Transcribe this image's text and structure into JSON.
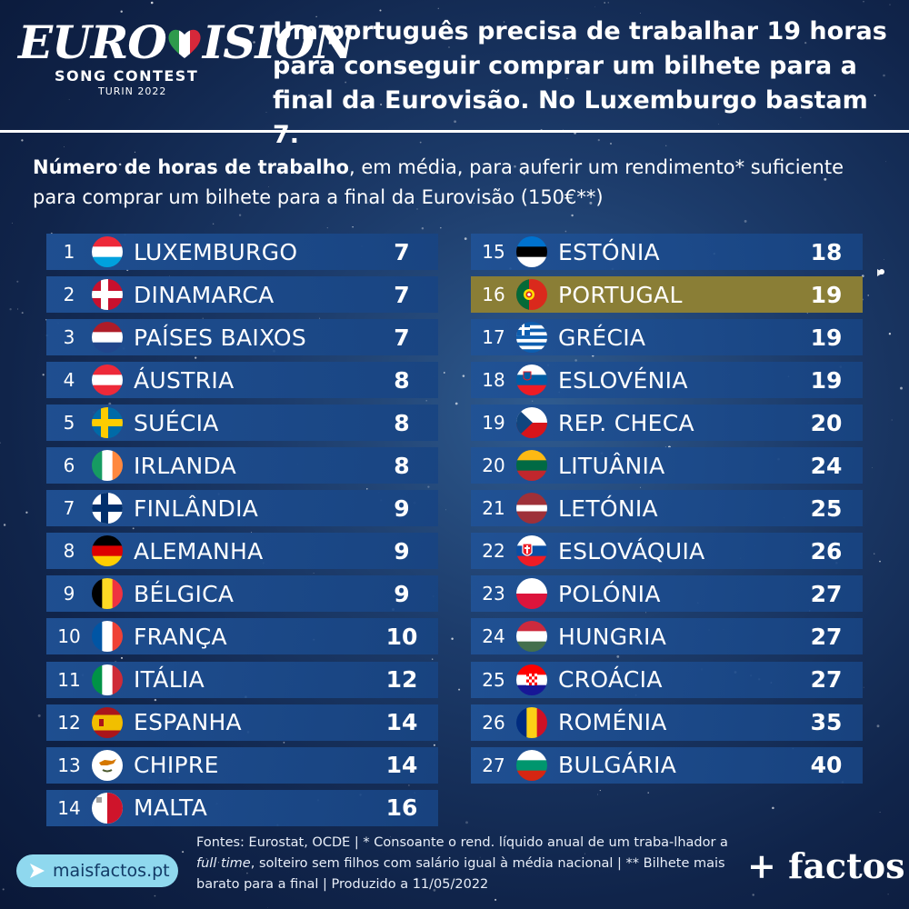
{
  "logo": {
    "word_left": "EURO",
    "word_right": "ISION",
    "line1": "SONG CONTEST",
    "line2": "TURIN 2022"
  },
  "headline": "Um português precisa de trabalhar 19 horas para conseguir comprar um bilhete para a final da Eurovisão. No Luxemburgo bastam 7.",
  "subtitle": {
    "bold": "Número de horas de trabalho",
    "rest": ", em média, para auferir um rendimento* suficiente para comprar um bilhete para a final da Eurovisão (150€**)"
  },
  "chart_data": {
    "type": "table",
    "highlight_rank": 16,
    "rows": [
      {
        "rank": 1,
        "country": "LUXEMBURGO",
        "hours": 7,
        "flag": "luxembourg-flag"
      },
      {
        "rank": 2,
        "country": "DINAMARCA",
        "hours": 7,
        "flag": "denmark-flag"
      },
      {
        "rank": 3,
        "country": "PAÍSES BAIXOS",
        "hours": 7,
        "flag": "netherlands-flag"
      },
      {
        "rank": 4,
        "country": "ÁUSTRIA",
        "hours": 8,
        "flag": "austria-flag"
      },
      {
        "rank": 5,
        "country": "SUÉCIA",
        "hours": 8,
        "flag": "sweden-flag"
      },
      {
        "rank": 6,
        "country": "IRLANDA",
        "hours": 8,
        "flag": "ireland-flag"
      },
      {
        "rank": 7,
        "country": "FINLÂNDIA",
        "hours": 9,
        "flag": "finland-flag"
      },
      {
        "rank": 8,
        "country": "ALEMANHA",
        "hours": 9,
        "flag": "germany-flag"
      },
      {
        "rank": 9,
        "country": "BÉLGICA",
        "hours": 9,
        "flag": "belgium-flag"
      },
      {
        "rank": 10,
        "country": "FRANÇA",
        "hours": 10,
        "flag": "france-flag"
      },
      {
        "rank": 11,
        "country": "ITÁLIA",
        "hours": 12,
        "flag": "italy-flag"
      },
      {
        "rank": 12,
        "country": "ESPANHA",
        "hours": 14,
        "flag": "spain-flag"
      },
      {
        "rank": 13,
        "country": "CHIPRE",
        "hours": 14,
        "flag": "cyprus-flag"
      },
      {
        "rank": 14,
        "country": "MALTA",
        "hours": 16,
        "flag": "malta-flag"
      },
      {
        "rank": 15,
        "country": "ESTÓNIA",
        "hours": 18,
        "flag": "estonia-flag"
      },
      {
        "rank": 16,
        "country": "PORTUGAL",
        "hours": 19,
        "flag": "portugal-flag"
      },
      {
        "rank": 17,
        "country": "GRÉCIA",
        "hours": 19,
        "flag": "greece-flag"
      },
      {
        "rank": 18,
        "country": "ESLOVÉNIA",
        "hours": 19,
        "flag": "slovenia-flag"
      },
      {
        "rank": 19,
        "country": "REP. CHECA",
        "hours": 20,
        "flag": "czechia-flag"
      },
      {
        "rank": 20,
        "country": "LITUÂNIA",
        "hours": 24,
        "flag": "lithuania-flag"
      },
      {
        "rank": 21,
        "country": "LETÓNIA",
        "hours": 25,
        "flag": "latvia-flag"
      },
      {
        "rank": 22,
        "country": "ESLOVÁQUIA",
        "hours": 26,
        "flag": "slovakia-flag"
      },
      {
        "rank": 23,
        "country": "POLÓNIA",
        "hours": 27,
        "flag": "poland-flag"
      },
      {
        "rank": 24,
        "country": "HUNGRIA",
        "hours": 27,
        "flag": "hungary-flag"
      },
      {
        "rank": 25,
        "country": "CROÁCIA",
        "hours": 27,
        "flag": "croatia-flag"
      },
      {
        "rank": 26,
        "country": "ROMÉNIA",
        "hours": 35,
        "flag": "romania-flag"
      },
      {
        "rank": 27,
        "country": "BULGÁRIA",
        "hours": 40,
        "flag": "bulgaria-flag"
      }
    ]
  },
  "footer": {
    "part1": "Fontes: Eurostat, OCDE | * Consoante o rend. líquido anual de um traba-lhador a ",
    "italic": "full time",
    "part2": ", solteiro sem filhos com salário igual à média nacional | ** Bilhete mais barato para a final | Produzido a 11/05/2022"
  },
  "site_label": "maisfactos.pt",
  "brand": "+ factos",
  "colors": {
    "row": "#1f4f92",
    "highlight": "#8a7e36",
    "site_pill": "#8fd8ee"
  }
}
